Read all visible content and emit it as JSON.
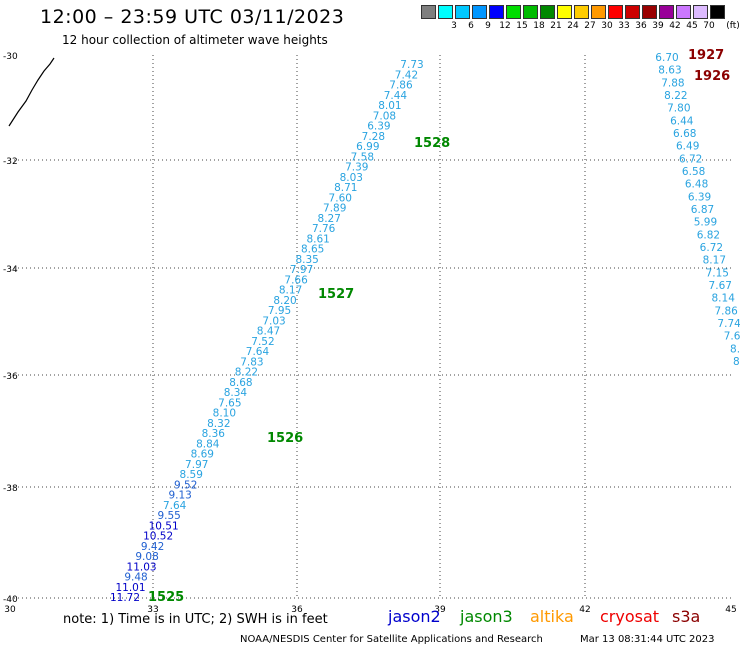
{
  "header": {
    "title": "12:00 – 23:59 UTC 03/11/2023",
    "subtitle": "12 hour collection of altimeter wave heights"
  },
  "legend": {
    "unit": "(ft)",
    "entries": [
      {
        "label": "",
        "color": "#7f7f7f"
      },
      {
        "label": "3",
        "color": "#00ffff"
      },
      {
        "label": "6",
        "color": "#00c8ff"
      },
      {
        "label": "9",
        "color": "#0096ff"
      },
      {
        "label": "12",
        "color": "#0000ff"
      },
      {
        "label": "15",
        "color": "#00dd00"
      },
      {
        "label": "18",
        "color": "#00bb00"
      },
      {
        "label": "21",
        "color": "#008800"
      },
      {
        "label": "24",
        "color": "#ffff00"
      },
      {
        "label": "27",
        "color": "#ffcc00"
      },
      {
        "label": "30",
        "color": "#ff9900"
      },
      {
        "label": "33",
        "color": "#ff0000"
      },
      {
        "label": "36",
        "color": "#cc0000"
      },
      {
        "label": "39",
        "color": "#990000"
      },
      {
        "label": "42",
        "color": "#990099"
      },
      {
        "label": "45",
        "color": "#cc77ff"
      },
      {
        "label": "70",
        "color": "#ddbbff"
      },
      {
        "label": "",
        "color": "#000000"
      }
    ]
  },
  "axes": {
    "lat_labels": [
      "-30",
      "-32",
      "-34",
      "-36",
      "-38",
      "-40"
    ],
    "lon_labels": [
      "30",
      "33",
      "36",
      "39",
      "42",
      "45"
    ]
  },
  "tracks": [
    {
      "id": "1525-1528",
      "points": [
        {
          "v": "7.73",
          "c": "#29a3e0"
        },
        {
          "v": "7.42",
          "c": "#29a3e0"
        },
        {
          "v": "7.86",
          "c": "#29a3e0"
        },
        {
          "v": "7.44",
          "c": "#29a3e0"
        },
        {
          "v": "8.01",
          "c": "#29a3e0"
        },
        {
          "v": "7.08",
          "c": "#29a3e0"
        },
        {
          "v": "6.39",
          "c": "#29a3e0"
        },
        {
          "v": "7.28",
          "c": "#29a3e0"
        },
        {
          "v": "6.99",
          "c": "#29a3e0"
        },
        {
          "v": "7.58",
          "c": "#29a3e0"
        },
        {
          "v": "7.39",
          "c": "#29a3e0"
        },
        {
          "v": "8.03",
          "c": "#29a3e0"
        },
        {
          "v": "8.71",
          "c": "#29a3e0"
        },
        {
          "v": "7.60",
          "c": "#29a3e0"
        },
        {
          "v": "7.89",
          "c": "#29a3e0"
        },
        {
          "v": "8.27",
          "c": "#29a3e0"
        },
        {
          "v": "7.76",
          "c": "#29a3e0"
        },
        {
          "v": "8.61",
          "c": "#29a3e0"
        },
        {
          "v": "8.65",
          "c": "#29a3e0"
        },
        {
          "v": "8.35",
          "c": "#29a3e0"
        },
        {
          "v": "7.97",
          "c": "#29a3e0"
        },
        {
          "v": "7.66",
          "c": "#29a3e0"
        },
        {
          "v": "8.17",
          "c": "#29a3e0"
        },
        {
          "v": "8.20",
          "c": "#29a3e0"
        },
        {
          "v": "7.95",
          "c": "#29a3e0"
        },
        {
          "v": "7.03",
          "c": "#29a3e0"
        },
        {
          "v": "8.47",
          "c": "#29a3e0"
        },
        {
          "v": "7.52",
          "c": "#29a3e0"
        },
        {
          "v": "7.64",
          "c": "#29a3e0"
        },
        {
          "v": "7.83",
          "c": "#29a3e0"
        },
        {
          "v": "8.22",
          "c": "#29a3e0"
        },
        {
          "v": "8.68",
          "c": "#29a3e0"
        },
        {
          "v": "8.34",
          "c": "#29a3e0"
        },
        {
          "v": "7.65",
          "c": "#29a3e0"
        },
        {
          "v": "8.10",
          "c": "#29a3e0"
        },
        {
          "v": "8.32",
          "c": "#29a3e0"
        },
        {
          "v": "8.36",
          "c": "#29a3e0"
        },
        {
          "v": "8.84",
          "c": "#29a3e0"
        },
        {
          "v": "8.69",
          "c": "#29a3e0"
        },
        {
          "v": "7.97",
          "c": "#29a3e0"
        },
        {
          "v": "8.59",
          "c": "#29a3e0"
        },
        {
          "v": "9.52",
          "c": "#1f5fd0"
        },
        {
          "v": "9.13",
          "c": "#1f5fd0"
        },
        {
          "v": "7.64",
          "c": "#29a3e0"
        },
        {
          "v": "9.55",
          "c": "#1f5fd0"
        },
        {
          "v": "10.51",
          "c": "#0000c8"
        },
        {
          "v": "10.52",
          "c": "#0000c8"
        },
        {
          "v": "9.42",
          "c": "#1f5fd0"
        },
        {
          "v": "9.08",
          "c": "#1f5fd0"
        },
        {
          "v": "11.03",
          "c": "#0000c8"
        },
        {
          "v": "9.48",
          "c": "#1f5fd0"
        },
        {
          "v": "11.01",
          "c": "#0000c8"
        },
        {
          "v": "11.72",
          "c": "#0000c8"
        }
      ]
    },
    {
      "id": "1926-1927",
      "points": [
        {
          "v": "6.70",
          "c": "#29a3e0"
        },
        {
          "v": "8.63",
          "c": "#29a3e0"
        },
        {
          "v": "7.88",
          "c": "#29a3e0"
        },
        {
          "v": "8.22",
          "c": "#29a3e0"
        },
        {
          "v": "7.80",
          "c": "#29a3e0"
        },
        {
          "v": "6.44",
          "c": "#29a3e0"
        },
        {
          "v": "6.68",
          "c": "#29a3e0"
        },
        {
          "v": "6.49",
          "c": "#29a3e0"
        },
        {
          "v": "6.72",
          "c": "#29a3e0"
        },
        {
          "v": "6.58",
          "c": "#29a3e0"
        },
        {
          "v": "6.48",
          "c": "#29a3e0"
        },
        {
          "v": "6.39",
          "c": "#29a3e0"
        },
        {
          "v": "6.87",
          "c": "#29a3e0"
        },
        {
          "v": "5.99",
          "c": "#29a3e0"
        },
        {
          "v": "6.82",
          "c": "#29a3e0"
        },
        {
          "v": "6.72",
          "c": "#29a3e0"
        },
        {
          "v": "8.17",
          "c": "#29a3e0"
        },
        {
          "v": "7.15",
          "c": "#29a3e0"
        },
        {
          "v": "7.67",
          "c": "#29a3e0"
        },
        {
          "v": "8.14",
          "c": "#29a3e0"
        },
        {
          "v": "7.86",
          "c": "#29a3e0"
        },
        {
          "v": "7.74",
          "c": "#29a3e0"
        },
        {
          "v": "7.6",
          "c": "#29a3e0"
        },
        {
          "v": "8.",
          "c": "#29a3e0"
        },
        {
          "v": "8.",
          "c": "#29a3e0"
        }
      ]
    }
  ],
  "time_labels": [
    {
      "text": "1528",
      "color": "#008800"
    },
    {
      "text": "1527",
      "color": "#008800"
    },
    {
      "text": "1526",
      "color": "#008800"
    },
    {
      "text": "1525",
      "color": "#008800"
    },
    {
      "text": "1927",
      "color": "#8b0000"
    },
    {
      "text": "1926",
      "color": "#8b0000"
    }
  ],
  "footer": {
    "note": "note: 1) Time is in UTC; 2) SWH is in feet",
    "satellites": [
      {
        "name": "jason2",
        "color": "#0000cc"
      },
      {
        "name": "jason3",
        "color": "#008800"
      },
      {
        "name": "altika",
        "color": "#ff9900"
      },
      {
        "name": "cryosat",
        "color": "#ee0000"
      },
      {
        "name": "s3a",
        "color": "#8b0000"
      }
    ],
    "credit": "NOAA/NESDIS Center for Satellite Applications and Research",
    "timestamp": "Mar 13 08:31:44 UTC 2023"
  }
}
